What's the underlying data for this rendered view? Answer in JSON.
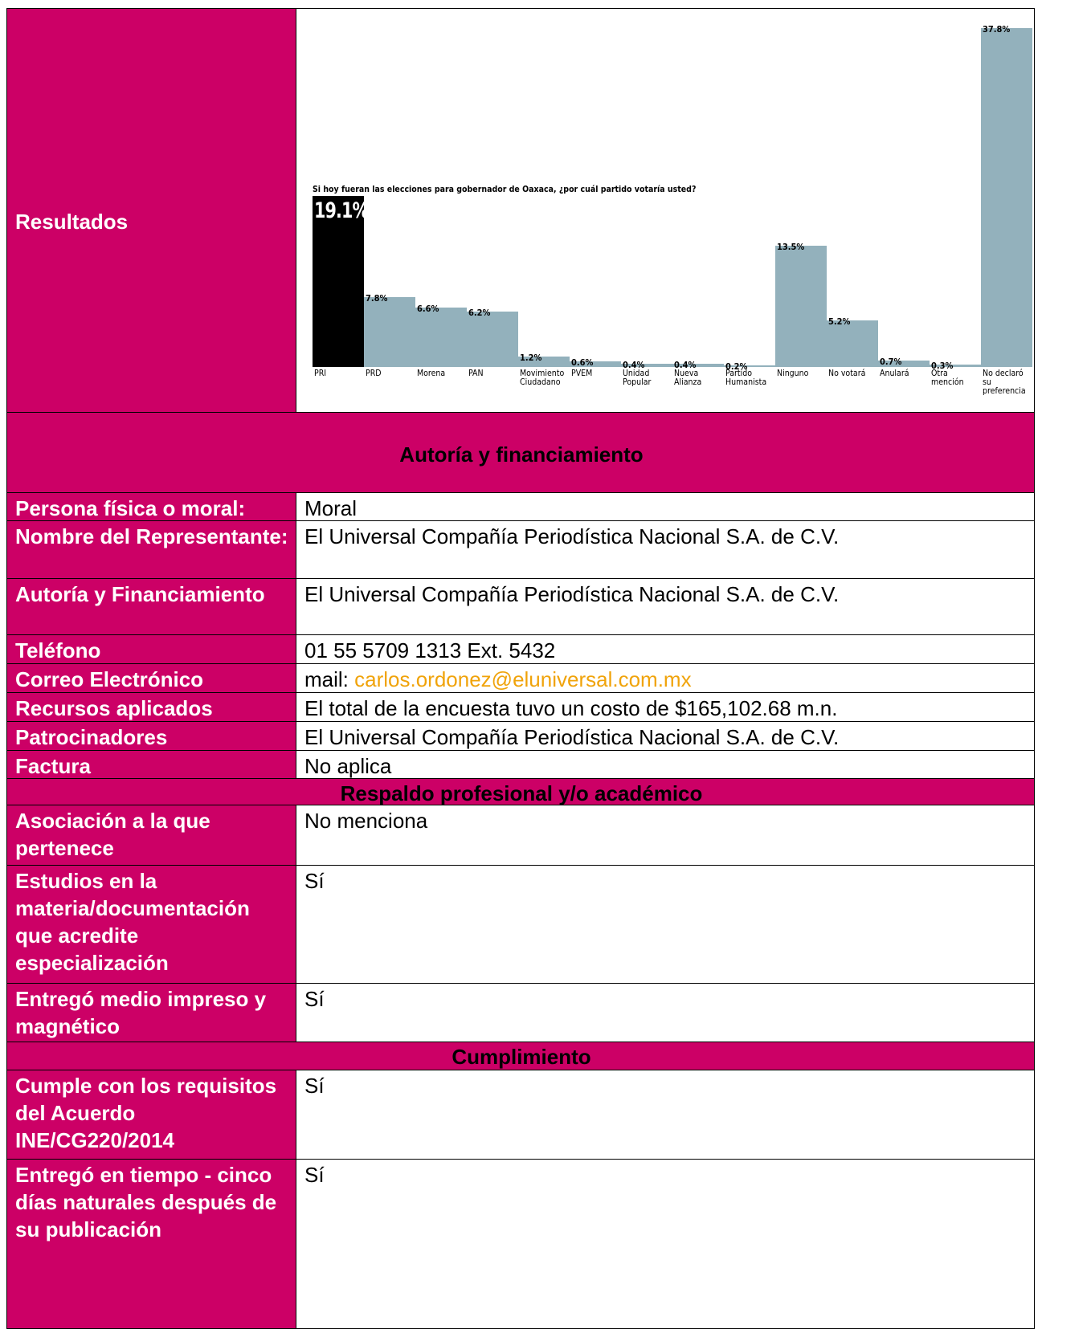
{
  "results_label": "Resultados",
  "chart_data": {
    "type": "bar",
    "title": "Si hoy fueran las elecciones para gobernador de Oaxaca, ¿por cuál partido votaría usted?",
    "categories": [
      "PRI",
      "PRD",
      "Morena",
      "PAN",
      "Movimiento Ciudadano",
      "PVEM",
      "Unidad Popular",
      "Nueva Alianza",
      "Partido Humanista",
      "Ninguno",
      "No votará",
      "Anulará",
      "Otra mención",
      "No declaró su preferencia"
    ],
    "values": [
      19.1,
      7.8,
      6.6,
      6.2,
      1.2,
      0.6,
      0.4,
      0.4,
      0.2,
      13.5,
      5.2,
      0.7,
      0.3,
      37.8
    ],
    "value_labels": [
      "19.1%",
      "7.8%",
      "6.6%",
      "6.2%",
      "1.2%",
      "0.6%",
      "0.4%",
      "0.4%",
      "0.2%",
      "13.5%",
      "5.2%",
      "0.7%",
      "0.3%",
      "37.8%"
    ],
    "colors": [
      "#000000",
      "#93b1bc",
      "#93b1bc",
      "#93b1bc",
      "#93b1bc",
      "#93b1bc",
      "#93b1bc",
      "#93b1bc",
      "#93b1bc",
      "#93b1bc",
      "#93b1bc",
      "#93b1bc",
      "#93b1bc",
      "#93b1bc"
    ]
  },
  "sections": [
    {
      "title": "Autoría y financiamiento",
      "rows": [
        {
          "label": "Persona física o moral:",
          "value": "Moral"
        },
        {
          "label": "Nombre del Representante:",
          "value": "El Universal Compañía Periodística Nacional S.A. de C.V."
        },
        {
          "label": "Autoría y Financiamiento",
          "value": "El Universal Compañía Periodística Nacional S.A. de C.V."
        },
        {
          "label": "Teléfono",
          "value": "01 55 5709 1313 Ext. 5432"
        },
        {
          "label": "Correo Electrónico",
          "value": "mail:",
          "link": "carlos.ordonez@eluniversal.com.mx"
        },
        {
          "label": "Recursos aplicados",
          "value": "El total de la encuesta tuvo un costo de $165,102.68 m.n."
        },
        {
          "label": "Patrocinadores",
          "value": "El Universal Compañía Periodística Nacional S.A. de C.V."
        },
        {
          "label": "Factura",
          "value": "No aplica"
        }
      ]
    },
    {
      "title": "Respaldo profesional y/o académico",
      "rows": [
        {
          "label": "Asociación a la que pertenece",
          "value": "No menciona"
        },
        {
          "label": "Estudios en la materia/documentación que acredite especialización",
          "value": "Sí"
        },
        {
          "label": "Entregó medio impreso y magnético",
          "value": "Sí"
        }
      ]
    },
    {
      "title": "Cumplimiento",
      "rows": [
        {
          "label": "Cumple con los requisitos del Acuerdo INE/CG220/2014",
          "value": "Sí"
        },
        {
          "label": "Entregó en tiempo - cinco días naturales después de su publicación",
          "value": "Sí"
        }
      ]
    }
  ]
}
